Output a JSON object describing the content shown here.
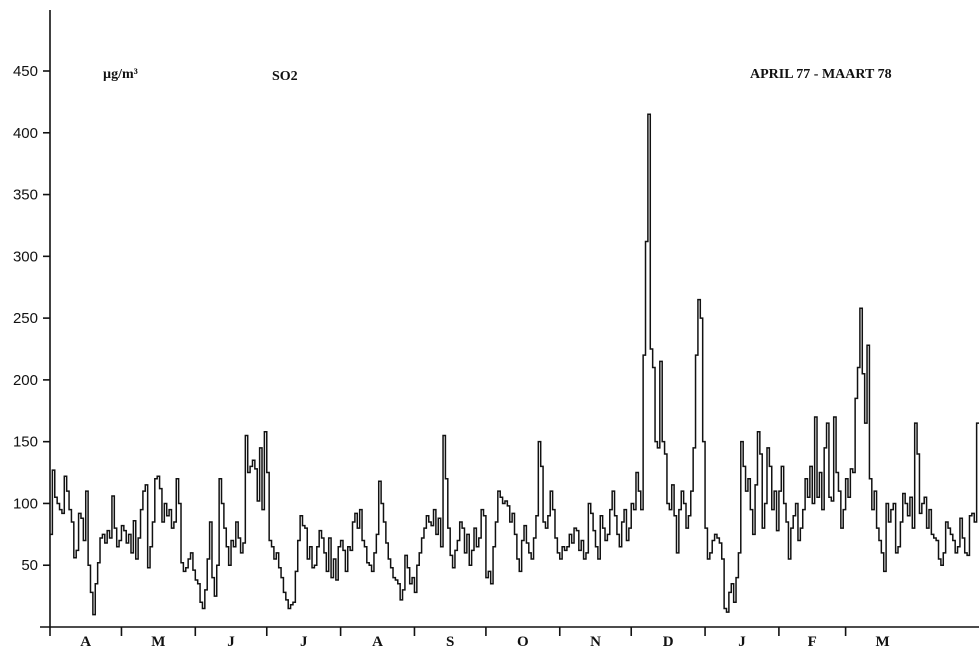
{
  "chart_data": {
    "type": "line",
    "title": "SO2",
    "subtitle": "APRIL 77 - MAART 78",
    "unit_label": "µg/m³",
    "xlabel": "",
    "ylabel": "",
    "ylim": [
      0,
      480
    ],
    "yticks": [
      50,
      100,
      150,
      200,
      250,
      300,
      350,
      400,
      450
    ],
    "grid": false,
    "legend": "none",
    "line_color": "#111111",
    "months": [
      "A",
      "M",
      "J",
      "J",
      "A",
      "S",
      "O",
      "N",
      "D",
      "J",
      "F",
      "M"
    ],
    "month_days": [
      30,
      31,
      30,
      31,
      31,
      30,
      31,
      30,
      31,
      31,
      28,
      31
    ],
    "series": [
      {
        "values": [
          75,
          127,
          105,
          100,
          95,
          92,
          122,
          110,
          95,
          85,
          56,
          62,
          92,
          88,
          70,
          110,
          50,
          28,
          10,
          35,
          52,
          72,
          75,
          68,
          78,
          72,
          106,
          80,
          65,
          70,
          82,
          78,
          68,
          75,
          60,
          86,
          55,
          72,
          95,
          110,
          115,
          48,
          65,
          85,
          120,
          122,
          112,
          85,
          100,
          90,
          95,
          80,
          85,
          120,
          100,
          52,
          45,
          48,
          55,
          60,
          46,
          38,
          35,
          20,
          15,
          30,
          55,
          85,
          40,
          25,
          50,
          120,
          100,
          80,
          65,
          50,
          70,
          65,
          85,
          72,
          60,
          68,
          155,
          125,
          130,
          135,
          128,
          102,
          145,
          95,
          158,
          125,
          70,
          65,
          55,
          60,
          48,
          40,
          28,
          22,
          15,
          18,
          20,
          45,
          70,
          90,
          82,
          80,
          55,
          65,
          48,
          50,
          65,
          78,
          72,
          60,
          45,
          72,
          40,
          55,
          38,
          65,
          70,
          62,
          45,
          65,
          62,
          85,
          92,
          80,
          95,
          70,
          65,
          52,
          50,
          45,
          60,
          75,
          118,
          100,
          85,
          68,
          55,
          48,
          40,
          38,
          35,
          22,
          30,
          58,
          48,
          35,
          40,
          28,
          50,
          60,
          72,
          80,
          90,
          85,
          82,
          95,
          75,
          88,
          65,
          155,
          120,
          80,
          58,
          48,
          62,
          70,
          85,
          80,
          60,
          75,
          50,
          62,
          80,
          65,
          72,
          95,
          90,
          40,
          45,
          35,
          65,
          85,
          110,
          105,
          100,
          102,
          98,
          85,
          92,
          75,
          55,
          45,
          70,
          82,
          68,
          60,
          55,
          72,
          90,
          150,
          130,
          85,
          80,
          90,
          110,
          95,
          72,
          60,
          55,
          65,
          62,
          65,
          75,
          68,
          80,
          78,
          62,
          70,
          55,
          60,
          100,
          92,
          78,
          65,
          55,
          90,
          80,
          70,
          75,
          95,
          110,
          90,
          75,
          65,
          85,
          95,
          70,
          80,
          100,
          95,
          125,
          110,
          95,
          220,
          312,
          415,
          225,
          210,
          150,
          145,
          215,
          150,
          140,
          100,
          95,
          115,
          90,
          60,
          95,
          110,
          100,
          80,
          90,
          110,
          145,
          220,
          265,
          250,
          150,
          80,
          55,
          60,
          70,
          75,
          72,
          68,
          55,
          15,
          12,
          28,
          35,
          20,
          40,
          60,
          150,
          130,
          110,
          120,
          95,
          75,
          115,
          158,
          140,
          80,
          100,
          145,
          130,
          95,
          110,
          78,
          110,
          130,
          100,
          85,
          55,
          80,
          90,
          100,
          70,
          80,
          95,
          120,
          105,
          130,
          100,
          170,
          105,
          125,
          95,
          145,
          165,
          105,
          102,
          170,
          125,
          110,
          80,
          95,
          120,
          105,
          128,
          125,
          185,
          210,
          258,
          205,
          165,
          228,
          120,
          95,
          110,
          80,
          70,
          60,
          45,
          100,
          85,
          95,
          100,
          60,
          65,
          85,
          108,
          100,
          90,
          105,
          80,
          165,
          140,
          92,
          100,
          105,
          80,
          95,
          75,
          72,
          70,
          55,
          50,
          60,
          85,
          80,
          75,
          70,
          60,
          65,
          88,
          72,
          60,
          58,
          90,
          92,
          85,
          165
        ]
      }
    ]
  }
}
